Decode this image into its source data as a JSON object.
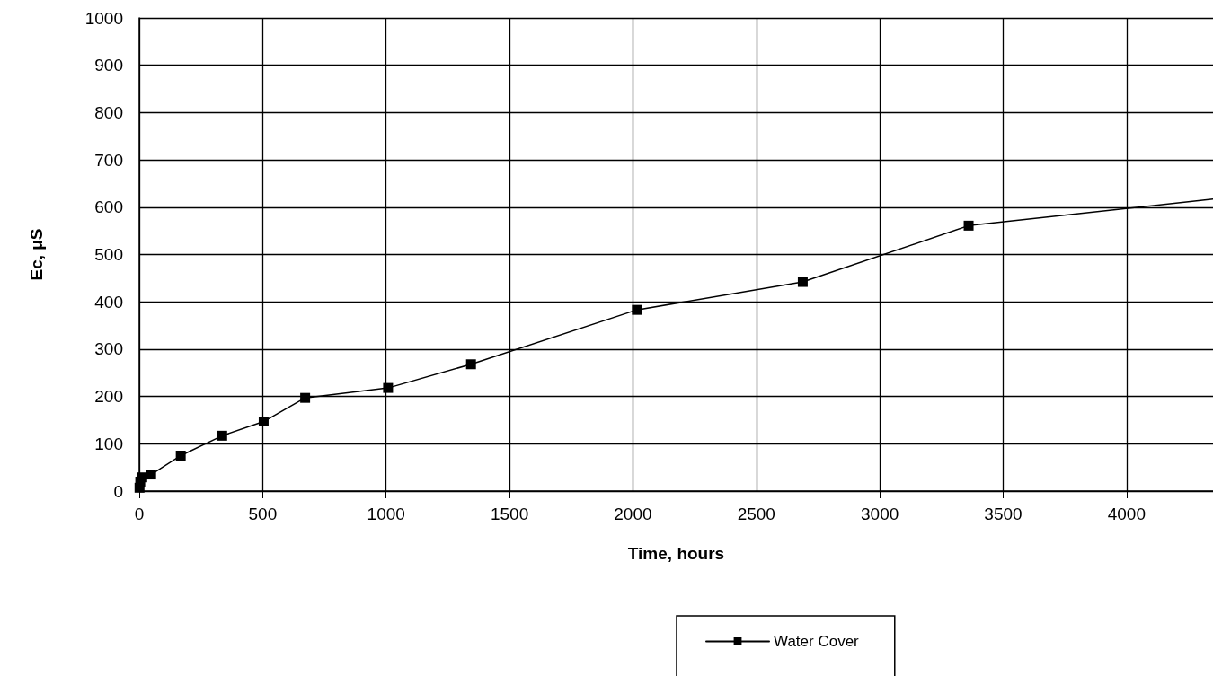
{
  "chart_data": {
    "type": "line",
    "xlabel": "Time, hours",
    "ylabel": "Ec, μS",
    "x": [
      1,
      4,
      12,
      48,
      168,
      336,
      504,
      672,
      1008,
      1344,
      2016,
      2688,
      3360,
      4350
    ],
    "series": [
      {
        "name": "Water Cover",
        "color": "#000000",
        "values": [
          7,
          20,
          29,
          35,
          75,
          117,
          147,
          197,
          218,
          268,
          383,
          442,
          561,
          617
        ]
      }
    ],
    "xlim": [
      0,
      4350
    ],
    "xticks": [
      0,
      500,
      1000,
      1500,
      2000,
      2500,
      3000,
      3500,
      4000
    ],
    "ylim": [
      0,
      1000
    ],
    "yticks": [
      0,
      100,
      200,
      300,
      400,
      500,
      600,
      700,
      800,
      900,
      1000
    ],
    "grid": true,
    "legend": "bottom",
    "marker": "square",
    "line_style": "solid"
  }
}
